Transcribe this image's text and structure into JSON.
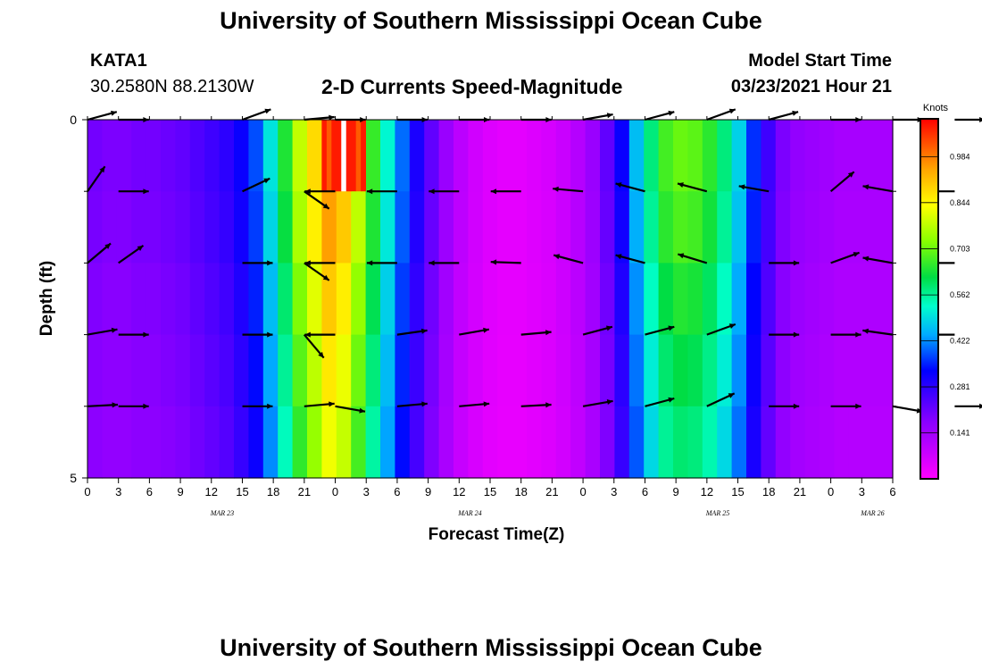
{
  "header": {
    "title": "University of Southern Mississippi Ocean Cube",
    "station": "KATA1",
    "coords": "30.2580N 88.2130W",
    "subtitle": "2-D Currents Speed-Magnitude",
    "model_start_label": "Model Start Time",
    "model_start_value": "03/23/2021 Hour 21"
  },
  "footer": {
    "title": "University of Southern Mississippi Ocean Cube"
  },
  "chart_data": {
    "type": "heatmap",
    "title": "2-D Currents Speed-Magnitude",
    "xlabel": "Forecast Time(Z)",
    "ylabel": "Depth (ft)",
    "y_ticks": [
      "0",
      "5"
    ],
    "ylim": [
      0,
      5
    ],
    "x_tick_labels": [
      "0",
      "3",
      "6",
      "9",
      "12",
      "15",
      "18",
      "21",
      "0",
      "3",
      "6",
      "9",
      "12",
      "15",
      "18",
      "21",
      "0",
      "3",
      "6",
      "9",
      "12",
      "15",
      "18",
      "21",
      "0",
      "3",
      "6"
    ],
    "date_labels": [
      {
        "text": "MAR 23",
        "tick_index": 4
      },
      {
        "text": "MAR 24",
        "tick_index": 12
      },
      {
        "text": "MAR 25",
        "tick_index": 20
      },
      {
        "text": "MAR 26",
        "tick_index": 25
      }
    ],
    "colorbar": {
      "label": "Knots",
      "ticks": [
        "0.141",
        "0.281",
        "0.422",
        "0.562",
        "0.703",
        "0.844",
        "0.984"
      ],
      "tick_values": [
        0.141,
        0.281,
        0.422,
        0.562,
        0.703,
        0.844,
        0.984
      ],
      "vmin": 0.0,
      "vmax": 1.1
    },
    "speed_by_time_step": [
      0.2,
      0.19,
      0.19,
      0.2,
      0.2,
      0.21,
      0.22,
      0.24,
      0.26,
      0.28,
      0.32,
      0.38,
      0.5,
      0.64,
      0.78,
      0.88,
      0.98,
      0.93,
      0.8,
      0.66,
      0.52,
      0.4,
      0.3,
      0.22,
      0.15,
      0.1,
      0.07,
      0.05,
      0.04,
      0.04,
      0.05,
      0.06,
      0.08,
      0.11,
      0.15,
      0.22,
      0.32,
      0.46,
      0.58,
      0.67,
      0.7,
      0.69,
      0.65,
      0.58,
      0.48,
      0.36,
      0.26,
      0.19,
      0.16,
      0.15,
      0.14,
      0.13,
      0.13,
      0.13,
      0.13
    ],
    "depth_level_factors": [
      1.0,
      0.97,
      0.92,
      0.88,
      0.84
    ],
    "surface_peak": {
      "from_step": 16,
      "to_step": 18,
      "speed": 1.08
    },
    "vector_times": [
      0,
      1,
      5,
      7,
      8,
      10,
      12,
      14,
      16,
      18,
      20,
      22,
      24,
      26,
      28,
      30,
      32,
      34,
      36,
      38,
      40,
      42,
      44,
      46,
      50,
      52
    ],
    "vector_angles_deg": [
      [
        15,
        0,
        20,
        5,
        0,
        0,
        0,
        0,
        10,
        15,
        20,
        15,
        0,
        0,
        0,
        0,
        0,
        0,
        0,
        0,
        0,
        0,
        0,
        0,
        0,
        0
      ],
      [
        55,
        0,
        25,
        -35,
        180,
        180,
        180,
        180,
        175,
        165,
        165,
        170,
        40,
        170,
        180,
        180,
        180,
        178,
        180,
        180,
        180,
        180,
        0,
        40,
        20,
        0
      ],
      [
        40,
        35,
        0,
        -35,
        180,
        180,
        180,
        178,
        165,
        165,
        163,
        0,
        20,
        170,
        180,
        180,
        180,
        177,
        178,
        180,
        180,
        180,
        0,
        35,
        5,
        0
      ],
      [
        10,
        0,
        0,
        -50,
        180,
        8,
        10,
        5,
        15,
        15,
        20,
        0,
        0,
        172,
        180,
        8,
        5,
        5,
        5,
        5,
        0,
        5,
        0,
        0,
        0,
        0
      ],
      [
        3,
        0,
        0,
        5,
        -10,
        5,
        5,
        3,
        10,
        15,
        25,
        0,
        0,
        -10,
        0,
        3,
        5,
        5,
        10,
        10,
        0,
        0,
        0,
        -10,
        0,
        0
      ]
    ]
  }
}
